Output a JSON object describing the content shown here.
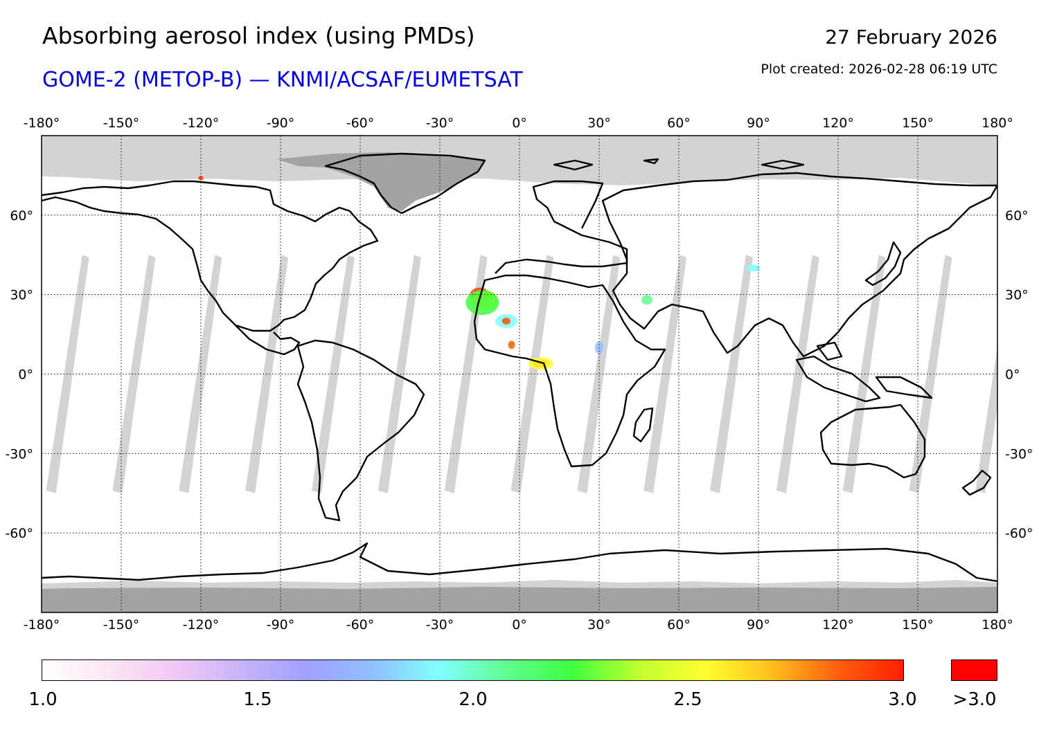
{
  "header": {
    "title": "Absorbing aerosol index (using PMDs)",
    "subtitle": "GOME-2 (METOP-B) — KNMI/ACSAF/EUMETSAT",
    "date": "27 February 2026",
    "plot_created": "Plot created: 2026-02-28 06:19 UTC"
  },
  "map": {
    "lon_ticks": [
      -180,
      -150,
      -120,
      -90,
      -60,
      -30,
      0,
      30,
      60,
      90,
      120,
      150,
      180
    ],
    "lat_ticks": [
      60,
      30,
      0,
      -30,
      -60
    ],
    "lon_range": [
      -180,
      180
    ],
    "lat_range": [
      -90,
      90
    ],
    "orbit_gap_lons": [
      -172,
      -147,
      -122,
      -97,
      -72,
      -47,
      -22,
      3,
      28,
      53,
      78,
      103,
      128,
      153,
      178
    ]
  },
  "colorbar": {
    "min": 1.0,
    "max": 3.0,
    "tick_labels": [
      "1.0",
      "1.5",
      "2.0",
      "2.5",
      "3.0"
    ],
    "over_label": ">3.0",
    "stops": [
      "#ffffff",
      "#fbe6f4",
      "#f2c8f6",
      "#c8b4f8",
      "#a0a0ff",
      "#90c0ff",
      "#80ffff",
      "#60ff90",
      "#40ff40",
      "#c0ff30",
      "#ffff30",
      "#ffc020",
      "#ff6010",
      "#ff2000"
    ],
    "over_color": "#ff0000"
  },
  "colors": {
    "land_outline": "#000000",
    "no_data_dark": "#a3a3a3",
    "no_data_light": "#d3d3d3",
    "subtitle": "#0000dd"
  }
}
